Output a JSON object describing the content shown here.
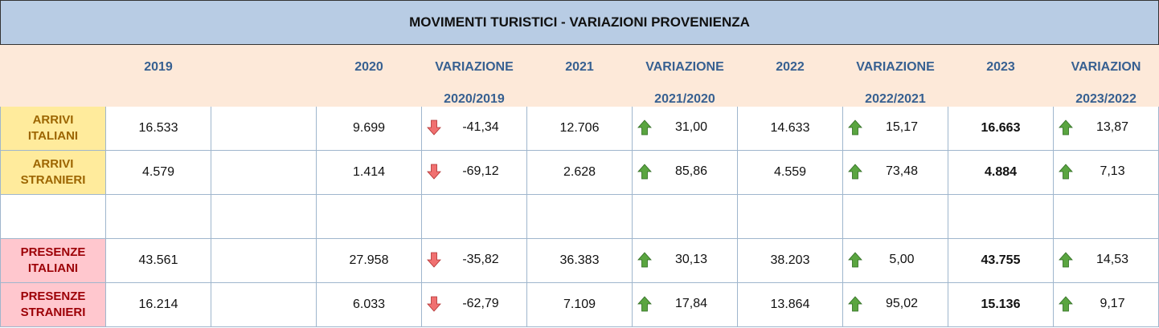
{
  "title": "MOVIMENTI TURISTICI - VARIAZIONI PROVENIENZA",
  "header": [
    {
      "top": "2019"
    },
    null,
    {
      "top": "2020"
    },
    {
      "top": "VARIAZIONE",
      "bottom": "2020/2019"
    },
    {
      "top": "2021"
    },
    {
      "top": "VARIAZIONE",
      "bottom": "2021/2020"
    },
    {
      "top": "2022"
    },
    {
      "top": "VARIAZIONE",
      "bottom": "2022/2021"
    },
    {
      "top": "2023"
    },
    {
      "top": "VARIAZION",
      "bottom": "2023/2022"
    }
  ],
  "rows": [
    {
      "label": [
        "ARRIVI",
        "ITALIANI"
      ],
      "cells": [
        "16.533",
        null,
        "9.699",
        "-41,34",
        "12.706",
        "31,00",
        "14.633",
        "15,17",
        "16.663",
        "13,87"
      ]
    },
    {
      "label": [
        "ARRIVI",
        "STRANIERI"
      ],
      "cells": [
        "4.579",
        null,
        "1.414",
        "-69,12",
        "2.628",
        "85,86",
        "4.559",
        "73,48",
        "4.884",
        "7,13"
      ]
    },
    null,
    {
      "label": [
        "PRESENZE",
        "ITALIANI"
      ],
      "cells": [
        "43.561",
        null,
        "27.958",
        "-35,82",
        "36.383",
        "30,13",
        "38.203",
        "5,00",
        "43.755",
        "14,53"
      ]
    },
    {
      "label": [
        "PRESENZE",
        "STRANIERI"
      ],
      "cells": [
        "16.214",
        null,
        "6.033",
        "-62,79",
        "7.109",
        "17,84",
        "13.864",
        "95,02",
        "15.136",
        "9,17"
      ]
    }
  ]
}
